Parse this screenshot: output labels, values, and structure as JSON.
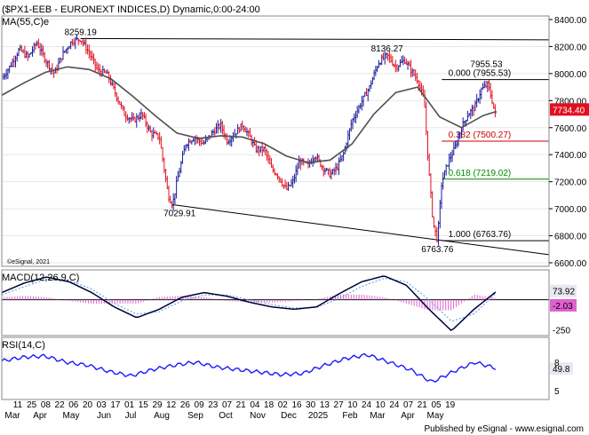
{
  "header": {
    "title": "($PX1-EEB - EURONEXT INDICES,D) Dynamic,0:00-24:00",
    "ma_label": "MA(55,C)e",
    "copyright": "©eSignal, 2021",
    "footer": "Published by eSignal - www.esignal.com"
  },
  "colors": {
    "price_up": "#1a1a9a",
    "price_down": "#e01020",
    "ma": "#505050",
    "fib_0": "#000000",
    "fib_382": "#cc0000",
    "fib_618": "#008800",
    "fib_1": "#000000",
    "macd": "#00003a",
    "signal": "#4aa0d8",
    "histogram": "#e060d0",
    "rsi": "#1a1aff",
    "last_price_bg": "#e01020"
  },
  "chart_data": [
    {
      "type": "candlestick",
      "title": "($PX1-EEB - EURONEXT INDICES,D) Dynamic,0:00-24:00",
      "ylim": [
        6600,
        8500
      ],
      "y_ticks": [
        "8400.00",
        "8200.00",
        "8000.00",
        "7800.00",
        "7600.00",
        "7400.00",
        "7200.00",
        "7000.00",
        "6800.00",
        "6600.00"
      ],
      "last_price": "7734.40",
      "x_ticks": [
        "11",
        "25",
        "08",
        "22",
        "06",
        "20",
        "03",
        "17",
        "01",
        "15",
        "29",
        "12",
        "26",
        "09",
        "23",
        "07",
        "21",
        "04",
        "18",
        "02",
        "16",
        "30",
        "13",
        "27",
        "10",
        "24",
        "10",
        "24",
        "07",
        "21",
        "05",
        "19"
      ],
      "month_labels": [
        "Mar",
        "Apr",
        "May",
        "Jun",
        "Jul",
        "Aug",
        "Sep",
        "Oct",
        "Nov",
        "Dec",
        "2025",
        "Feb",
        "Mar",
        "Apr",
        "May"
      ],
      "price_path": [
        {
          "x": 0,
          "y": 7960
        },
        {
          "x": 4,
          "y": 8060
        },
        {
          "x": 8,
          "y": 8180
        },
        {
          "x": 12,
          "y": 8120
        },
        {
          "x": 16,
          "y": 8230
        },
        {
          "x": 20,
          "y": 8100
        },
        {
          "x": 24,
          "y": 8000
        },
        {
          "x": 28,
          "y": 8150
        },
        {
          "x": 32,
          "y": 8240
        },
        {
          "x": 36,
          "y": 8259
        },
        {
          "x": 40,
          "y": 8150
        },
        {
          "x": 44,
          "y": 8020
        },
        {
          "x": 48,
          "y": 8000
        },
        {
          "x": 52,
          "y": 7850
        },
        {
          "x": 56,
          "y": 7700
        },
        {
          "x": 60,
          "y": 7650
        },
        {
          "x": 64,
          "y": 7700
        },
        {
          "x": 68,
          "y": 7560
        },
        {
          "x": 72,
          "y": 7530
        },
        {
          "x": 76,
          "y": 7100
        },
        {
          "x": 78,
          "y": 7030
        },
        {
          "x": 80,
          "y": 7200
        },
        {
          "x": 84,
          "y": 7480
        },
        {
          "x": 88,
          "y": 7530
        },
        {
          "x": 92,
          "y": 7480
        },
        {
          "x": 96,
          "y": 7560
        },
        {
          "x": 100,
          "y": 7620
        },
        {
          "x": 103,
          "y": 7500
        },
        {
          "x": 106,
          "y": 7550
        },
        {
          "x": 110,
          "y": 7620
        },
        {
          "x": 113,
          "y": 7540
        },
        {
          "x": 116,
          "y": 7440
        },
        {
          "x": 120,
          "y": 7440
        },
        {
          "x": 123,
          "y": 7300
        },
        {
          "x": 126,
          "y": 7250
        },
        {
          "x": 130,
          "y": 7140
        },
        {
          "x": 133,
          "y": 7200
        },
        {
          "x": 136,
          "y": 7350
        },
        {
          "x": 140,
          "y": 7320
        },
        {
          "x": 143,
          "y": 7400
        },
        {
          "x": 146,
          "y": 7320
        },
        {
          "x": 150,
          "y": 7250
        },
        {
          "x": 153,
          "y": 7300
        },
        {
          "x": 156,
          "y": 7400
        },
        {
          "x": 160,
          "y": 7650
        },
        {
          "x": 164,
          "y": 7780
        },
        {
          "x": 168,
          "y": 7900
        },
        {
          "x": 172,
          "y": 8080
        },
        {
          "x": 176,
          "y": 8136
        },
        {
          "x": 180,
          "y": 8050
        },
        {
          "x": 184,
          "y": 8100
        },
        {
          "x": 188,
          "y": 8000
        },
        {
          "x": 190,
          "y": 7950
        },
        {
          "x": 193,
          "y": 7800
        },
        {
          "x": 195,
          "y": 7300
        },
        {
          "x": 197,
          "y": 6900
        },
        {
          "x": 199,
          "y": 6764
        },
        {
          "x": 201,
          "y": 7200
        },
        {
          "x": 204,
          "y": 7350
        },
        {
          "x": 207,
          "y": 7450
        },
        {
          "x": 210,
          "y": 7600
        },
        {
          "x": 213,
          "y": 7700
        },
        {
          "x": 216,
          "y": 7750
        },
        {
          "x": 219,
          "y": 7880
        },
        {
          "x": 222,
          "y": 7920
        },
        {
          "x": 224,
          "y": 7800
        },
        {
          "x": 226,
          "y": 7650
        }
      ],
      "ma": {
        "name": "MA(55,C)e",
        "values": [
          {
            "x": 0,
            "y": 7840
          },
          {
            "x": 10,
            "y": 7930
          },
          {
            "x": 20,
            "y": 8010
          },
          {
            "x": 30,
            "y": 8050
          },
          {
            "x": 40,
            "y": 8030
          },
          {
            "x": 50,
            "y": 7960
          },
          {
            "x": 60,
            "y": 7830
          },
          {
            "x": 70,
            "y": 7690
          },
          {
            "x": 80,
            "y": 7560
          },
          {
            "x": 90,
            "y": 7520
          },
          {
            "x": 100,
            "y": 7540
          },
          {
            "x": 110,
            "y": 7530
          },
          {
            "x": 120,
            "y": 7480
          },
          {
            "x": 130,
            "y": 7390
          },
          {
            "x": 140,
            "y": 7340
          },
          {
            "x": 150,
            "y": 7360
          },
          {
            "x": 160,
            "y": 7480
          },
          {
            "x": 170,
            "y": 7700
          },
          {
            "x": 180,
            "y": 7860
          },
          {
            "x": 190,
            "y": 7900
          },
          {
            "x": 200,
            "y": 7680
          },
          {
            "x": 210,
            "y": 7600
          },
          {
            "x": 220,
            "y": 7690
          },
          {
            "x": 226,
            "y": 7720
          }
        ]
      },
      "annotations": [
        {
          "text": "8259.19",
          "x": 36,
          "y": 8259.19
        },
        {
          "text": "8136.27",
          "x": 176,
          "y": 8136.27
        },
        {
          "text": "7955.53",
          "x": 223,
          "y": 7955.53
        },
        {
          "text": "7029.91",
          "x": 78,
          "y": 7029.91
        },
        {
          "text": "6763.76",
          "x": 199,
          "y": 6763.76
        }
      ],
      "trendlines": [
        {
          "from": {
            "x": 36,
            "y": 8259
          },
          "to": {
            "x": 250,
            "y": 8250
          }
        },
        {
          "from": {
            "x": 78,
            "y": 7030
          },
          "to": {
            "x": 250,
            "y": 6660
          }
        }
      ],
      "fib_levels": [
        {
          "label": "0.000 (7955.53)",
          "value": 7955.53,
          "key": "fib_0"
        },
        {
          "label": "0.382 (7500.27)",
          "value": 7500.27,
          "key": "fib_382"
        },
        {
          "label": "0.618 (7219.02)",
          "value": 7219.02,
          "key": "fib_618"
        },
        {
          "label": "1.000 (6763.76)",
          "value": 6763.76,
          "key": "fib_1"
        }
      ]
    },
    {
      "type": "line",
      "title": "MACD(12,26,9,C)",
      "ylim": [
        -300,
        250
      ],
      "y_ticks": [
        "-250"
      ],
      "readouts": [
        "73.92",
        "-2.03"
      ],
      "series": [
        {
          "name": "MACD",
          "values": [
            60,
            140,
            190,
            150,
            60,
            -60,
            -150,
            -80,
            20,
            60,
            30,
            -20,
            -60,
            -80,
            -60,
            50,
            150,
            200,
            120,
            -80,
            -260,
            -80,
            70
          ]
        },
        {
          "name": "Signal",
          "values": [
            40,
            110,
            170,
            160,
            90,
            -30,
            -120,
            -100,
            -10,
            40,
            40,
            0,
            -40,
            -70,
            -65,
            10,
            110,
            180,
            150,
            0,
            -180,
            -120,
            60
          ]
        }
      ]
    },
    {
      "type": "line",
      "title": "RSI(14,C)",
      "ylim": [
        0,
        100
      ],
      "y_ticks": [
        "8",
        "5"
      ],
      "readout": "49.8",
      "values": [
        62,
        68,
        70,
        60,
        55,
        45,
        38,
        48,
        55,
        60,
        52,
        48,
        44,
        40,
        42,
        55,
        66,
        72,
        60,
        48,
        28,
        45,
        60,
        50
      ]
    }
  ]
}
